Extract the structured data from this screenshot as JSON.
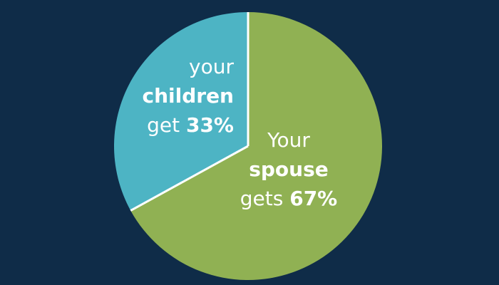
{
  "chart_data": {
    "type": "pie",
    "categories": [
      "children",
      "spouse"
    ],
    "label_parts": [
      [
        "your",
        "get"
      ],
      [
        "Your",
        "gets"
      ]
    ],
    "values": [
      33,
      67
    ],
    "value_labels": [
      "33%",
      "67%"
    ],
    "colors": [
      "#4db4c4",
      "#90b153"
    ],
    "background": "#0f2c48"
  }
}
